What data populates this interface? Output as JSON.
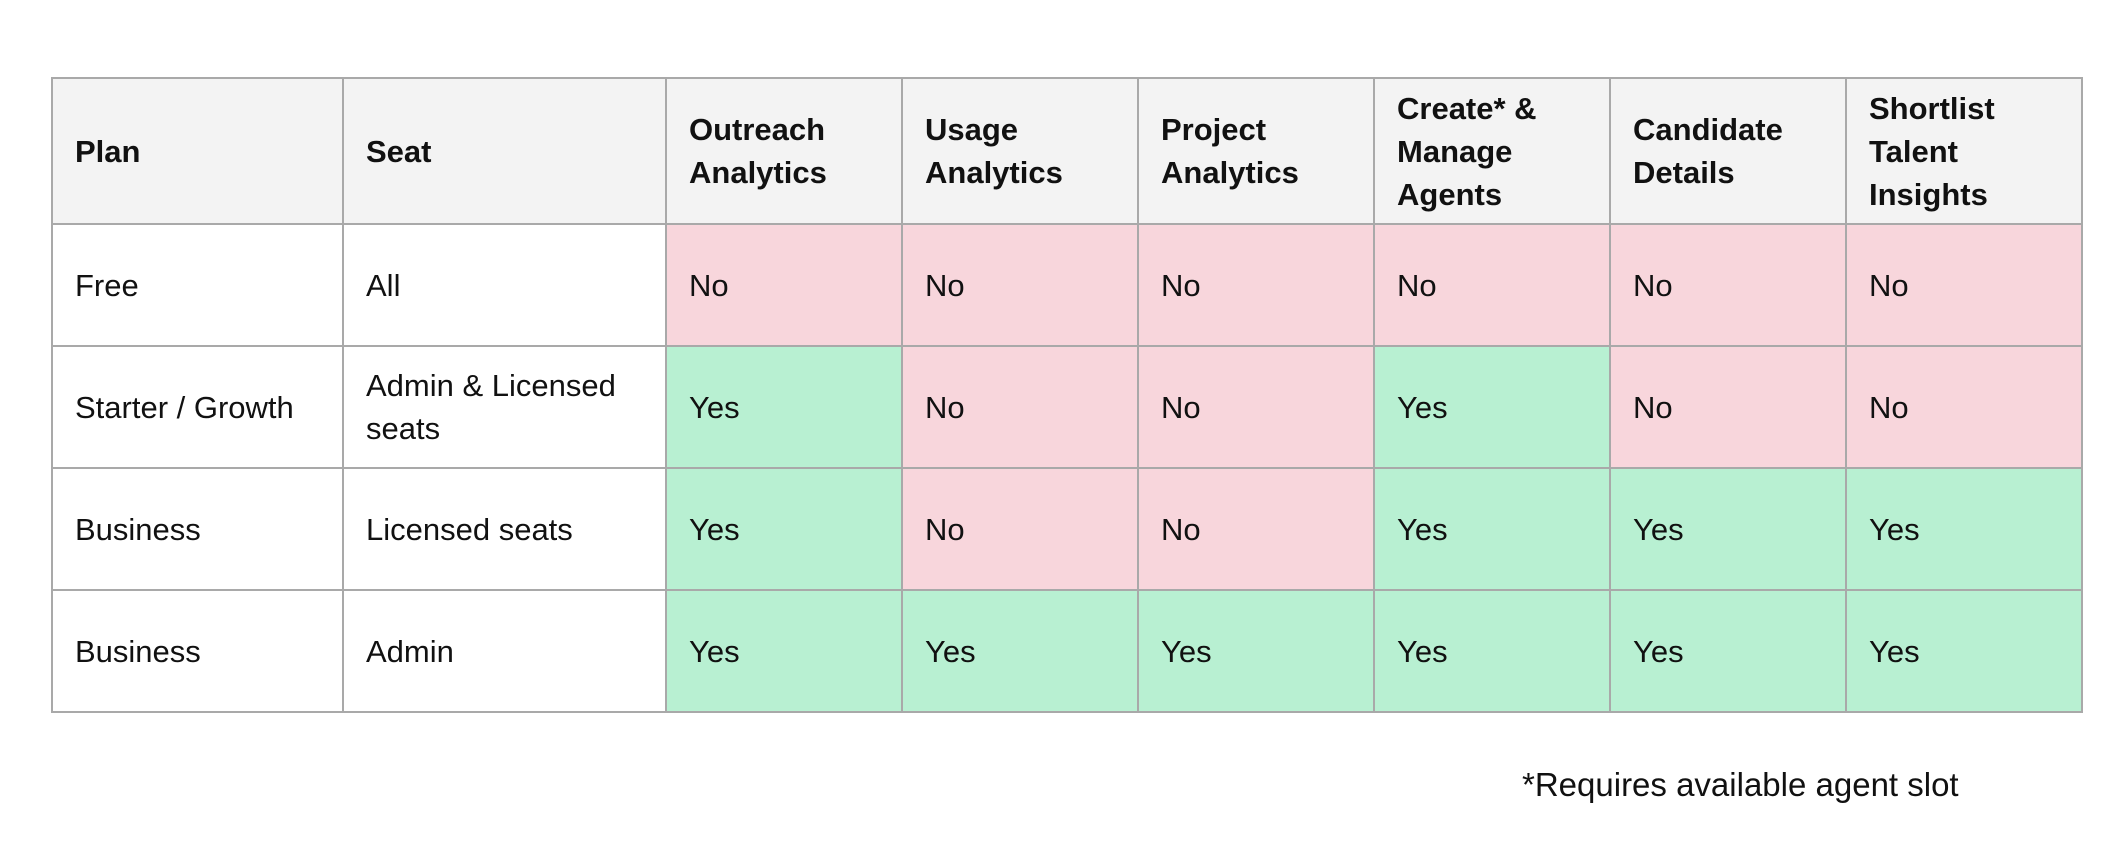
{
  "table": {
    "headers": [
      "Plan",
      "Seat",
      "Outreach Analytics",
      "Usage Analytics",
      "Project Analytics",
      "Create* & Manage Agents",
      "Candidate Details",
      "Shortlist Talent Insights"
    ],
    "rows": [
      {
        "plan": "Free",
        "seat": "All",
        "values": [
          "No",
          "No",
          "No",
          "No",
          "No",
          "No"
        ]
      },
      {
        "plan": "Starter / Growth",
        "seat": "Admin & Licensed seats",
        "values": [
          "Yes",
          "No",
          "No",
          "Yes",
          "No",
          "No"
        ]
      },
      {
        "plan": "Business",
        "seat": "Licensed seats",
        "values": [
          "Yes",
          "No",
          "No",
          "Yes",
          "Yes",
          "Yes"
        ]
      },
      {
        "plan": "Business",
        "seat": "Admin",
        "values": [
          "Yes",
          "Yes",
          "Yes",
          "Yes",
          "Yes",
          "Yes"
        ]
      }
    ]
  },
  "footnote": "*Requires available agent slot",
  "colors": {
    "yes": "#b8f0d2",
    "no": "#f8d6dc",
    "header_bg": "#f3f3f3",
    "border": "#a9a9a9"
  }
}
